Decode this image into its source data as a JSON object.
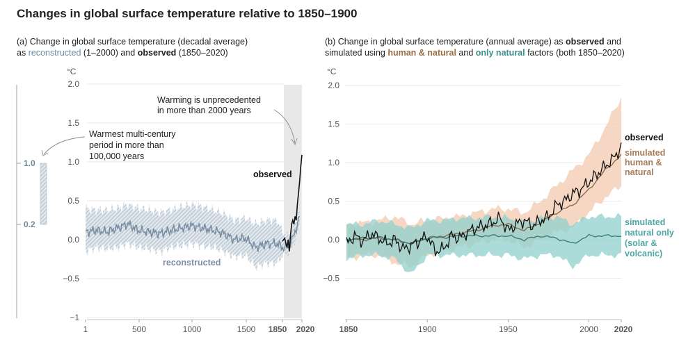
{
  "title": "Changes in global surface temperature relative to 1850–1900",
  "panel_a": {
    "subtitle_line1": "(a) Change in global surface temperature (decadal average)",
    "subtitle_line2_prefix": "as ",
    "subtitle_line2_recon": "reconstructed",
    "subtitle_line2_mid": " (1–2000) and ",
    "subtitle_line2_obs": "observed",
    "subtitle_line2_suffix": " (1850–2020)",
    "unit": "°C",
    "annotation_warming_line1": "Warming is unprecedented",
    "annotation_warming_line2": "in more than 2000 years",
    "annotation_warmest_line1": "Warmest multi-century",
    "annotation_warmest_line2": "period in more than",
    "annotation_warmest_line3": "100,000 years",
    "label_observed": "observed",
    "label_reconstructed": "reconstructed",
    "bar_top_label": "1.0",
    "bar_bottom_label": "0.2"
  },
  "panel_b": {
    "subtitle_line1_prefix": "(b) Change in global surface temperature (annual average) as ",
    "subtitle_line1_obs": "observed",
    "subtitle_line1_suffix": " and",
    "subtitle_line2_prefix": "simulated using ",
    "subtitle_line2_human": "human & natural",
    "subtitle_line2_mid": " and ",
    "subtitle_line2_natural": "only natural",
    "subtitle_line2_suffix": " factors (both 1850–2020)",
    "unit": "°C",
    "legend_observed": "observed",
    "legend_human_1": "simulated",
    "legend_human_2": "human &",
    "legend_human_3": "natural",
    "legend_natural_1": "simulated",
    "legend_natural_2": "natural only",
    "legend_natural_3": "(solar &",
    "legend_natural_4": "volcanic)"
  },
  "colors": {
    "reconstructed": "#7b8fa3",
    "recon_band": "#b9c6d3",
    "observed": "#111111",
    "human": "#8a6a4f",
    "human_band": "#f2cdb4",
    "natural": "#3b7f7d",
    "natural_band": "#8fd0cd",
    "shade": "#e8e8e8"
  },
  "chart_data": [
    {
      "type": "line",
      "xlabel": "",
      "ylabel": "°C",
      "xlim": [
        1,
        2020
      ],
      "ylim": [
        -1,
        2
      ],
      "x_ticks": [
        "1",
        "500",
        "1000",
        "1500",
        "1850",
        "2020"
      ],
      "y_ticks": [
        "2.0",
        "1.5",
        "1.0",
        "0.5",
        "0.0",
        "−0.5",
        "−1"
      ],
      "series": [
        {
          "name": "reconstructed",
          "x": [
            1,
            100,
            200,
            300,
            400,
            500,
            600,
            700,
            800,
            900,
            1000,
            1100,
            1200,
            1300,
            1400,
            1500,
            1600,
            1700,
            1800,
            1850,
            1900,
            1950,
            2000
          ],
          "values": [
            0.1,
            0.12,
            0.1,
            0.15,
            0.2,
            0.12,
            0.1,
            0.08,
            0.12,
            0.15,
            0.18,
            0.15,
            0.12,
            0.08,
            0.0,
            0.02,
            -0.1,
            -0.05,
            -0.05,
            -0.1,
            -0.1,
            0.05,
            0.3
          ],
          "lower": [
            -0.15,
            -0.1,
            -0.12,
            -0.1,
            -0.05,
            -0.1,
            -0.12,
            -0.15,
            -0.1,
            -0.08,
            -0.05,
            -0.08,
            -0.1,
            -0.15,
            -0.22,
            -0.2,
            -0.35,
            -0.3,
            -0.3,
            -0.2,
            -0.18,
            -0.05,
            0.18
          ],
          "upper": [
            0.4,
            0.38,
            0.38,
            0.4,
            0.45,
            0.4,
            0.38,
            0.35,
            0.38,
            0.42,
            0.45,
            0.42,
            0.38,
            0.33,
            0.25,
            0.28,
            0.2,
            0.25,
            0.25,
            0.1,
            0.05,
            0.2,
            0.45
          ]
        },
        {
          "name": "observed",
          "x": [
            1850,
            1860,
            1870,
            1880,
            1890,
            1900,
            1910,
            1920,
            1930,
            1940,
            1950,
            1960,
            1970,
            1980,
            1990,
            2000,
            2010,
            2020
          ],
          "values": [
            -0.02,
            0.0,
            0.02,
            -0.05,
            -0.1,
            0.0,
            -0.15,
            0.05,
            0.2,
            0.25,
            0.2,
            0.3,
            0.25,
            0.45,
            0.6,
            0.75,
            0.95,
            1.09
          ]
        }
      ]
    },
    {
      "type": "line",
      "xlabel": "",
      "ylabel": "°C",
      "xlim": [
        1850,
        2020
      ],
      "ylim": [
        -1,
        2
      ],
      "x_ticks": [
        "1850",
        "1900",
        "1950",
        "2000",
        "2020"
      ],
      "y_ticks": [
        "2.0",
        "1.5",
        "1.0",
        "0.5",
        "0.0",
        "−0.5"
      ],
      "series": [
        {
          "name": "observed",
          "x": [
            1850,
            1855,
            1860,
            1865,
            1870,
            1875,
            1880,
            1885,
            1890,
            1895,
            1900,
            1905,
            1910,
            1915,
            1920,
            1925,
            1930,
            1935,
            1940,
            1945,
            1950,
            1955,
            1960,
            1965,
            1970,
            1975,
            1980,
            1985,
            1990,
            1995,
            2000,
            2005,
            2010,
            2015,
            2020
          ],
          "values": [
            -0.05,
            0.05,
            -0.02,
            0.08,
            0.02,
            -0.05,
            0.0,
            -0.12,
            -0.08,
            -0.02,
            0.05,
            -0.15,
            -0.12,
            0.05,
            0.02,
            0.1,
            0.15,
            0.18,
            0.22,
            0.28,
            0.12,
            0.2,
            0.25,
            0.18,
            0.25,
            0.3,
            0.45,
            0.5,
            0.6,
            0.65,
            0.75,
            0.85,
            0.95,
            1.05,
            1.2
          ]
        },
        {
          "name": "simulated human & natural",
          "x": [
            1850,
            1860,
            1870,
            1880,
            1890,
            1900,
            1910,
            1920,
            1930,
            1940,
            1950,
            1960,
            1970,
            1980,
            1990,
            2000,
            2010,
            2020
          ],
          "values": [
            0.0,
            0.0,
            0.02,
            0.0,
            -0.05,
            0.02,
            0.05,
            0.08,
            0.12,
            0.18,
            0.2,
            0.12,
            0.22,
            0.35,
            0.45,
            0.65,
            0.9,
            1.1
          ],
          "lower": [
            -0.25,
            -0.2,
            -0.2,
            -0.3,
            -0.35,
            -0.2,
            -0.15,
            -0.1,
            -0.05,
            0.0,
            0.0,
            -0.1,
            0.0,
            0.1,
            0.15,
            0.35,
            0.55,
            0.7
          ],
          "upper": [
            0.2,
            0.22,
            0.25,
            0.3,
            0.2,
            0.25,
            0.28,
            0.3,
            0.35,
            0.4,
            0.4,
            0.35,
            0.5,
            0.7,
            0.9,
            1.1,
            1.45,
            1.85
          ]
        },
        {
          "name": "simulated natural only",
          "x": [
            1850,
            1860,
            1870,
            1880,
            1890,
            1900,
            1910,
            1920,
            1930,
            1940,
            1950,
            1960,
            1970,
            1980,
            1990,
            2000,
            2010,
            2020
          ],
          "values": [
            0.0,
            0.02,
            0.03,
            0.0,
            -0.05,
            0.02,
            0.03,
            0.05,
            0.05,
            0.05,
            0.05,
            0.0,
            0.05,
            0.02,
            -0.05,
            0.05,
            0.05,
            0.05
          ],
          "lower": [
            -0.25,
            -0.2,
            -0.2,
            -0.25,
            -0.45,
            -0.2,
            -0.2,
            -0.2,
            -0.2,
            -0.2,
            -0.2,
            -0.25,
            -0.2,
            -0.2,
            -0.35,
            -0.2,
            -0.2,
            -0.2
          ],
          "upper": [
            0.2,
            0.2,
            0.25,
            0.2,
            0.15,
            0.25,
            0.25,
            0.28,
            0.28,
            0.3,
            0.28,
            0.22,
            0.28,
            0.3,
            0.2,
            0.3,
            0.3,
            0.3
          ]
        }
      ]
    }
  ]
}
